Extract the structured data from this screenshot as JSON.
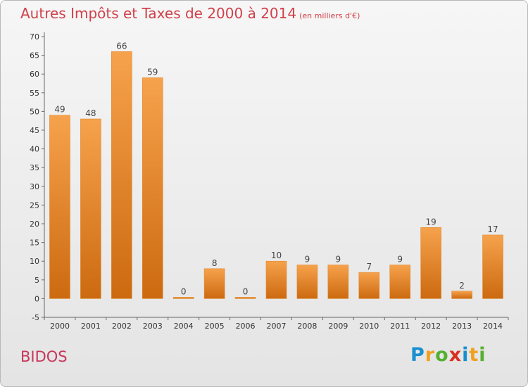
{
  "header": {
    "title": "Autres Impôts et Taxes de 2000 à 2014",
    "unit": "(en milliers d'€)"
  },
  "footer": {
    "commune": "BIDOS",
    "logo_letters": [
      "P",
      "r",
      "o",
      "x",
      "i",
      "t",
      "i"
    ],
    "logo_colors": [
      "#1a8fd0",
      "#f0a020",
      "#56b030",
      "#d83020",
      "#1a8fd0",
      "#f0a020",
      "#56b030"
    ]
  },
  "colors": {
    "bar_light": "#f6a24c",
    "bar_dark": "#cc6a10",
    "title": "#d0404a",
    "commune": "#c8365c"
  },
  "chart_data": {
    "type": "bar",
    "title": "Autres Impôts et Taxes de 2000 à 2014",
    "xlabel": "",
    "ylabel": "",
    "categories": [
      "2000",
      "2001",
      "2002",
      "2003",
      "2004",
      "2005",
      "2006",
      "2007",
      "2008",
      "2009",
      "2010",
      "2011",
      "2012",
      "2013",
      "2014"
    ],
    "values": [
      49,
      48,
      66,
      59,
      0,
      8,
      0,
      10,
      9,
      9,
      7,
      9,
      19,
      2,
      17
    ],
    "ylim": [
      -5,
      70
    ],
    "yticks": [
      -5,
      0,
      5,
      10,
      15,
      20,
      25,
      30,
      35,
      40,
      45,
      50,
      55,
      60,
      65,
      70
    ],
    "grid": false
  }
}
